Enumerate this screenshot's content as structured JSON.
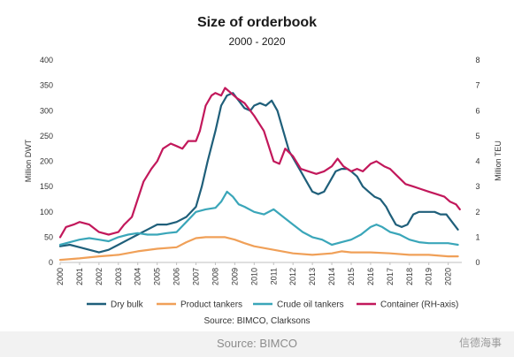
{
  "chart_data": {
    "type": "line",
    "title": "Size of orderbook",
    "subtitle": "2000 - 2020",
    "ylabel": "Million DWT",
    "y2label": "Million TEU",
    "source": "Source: BIMCO, Clarksons",
    "xlim": [
      2000,
      2020.7
    ],
    "ylim": [
      0,
      400
    ],
    "y2lim": [
      0,
      8
    ],
    "yticks": [
      "0",
      "50",
      "100",
      "150",
      "200",
      "250",
      "300",
      "350",
      "400"
    ],
    "y2ticks": [
      "0",
      "1",
      "2",
      "3",
      "4",
      "5",
      "6",
      "7",
      "8"
    ],
    "xticks": [
      "2000",
      "2001",
      "2002",
      "2003",
      "2004",
      "2005",
      "2006",
      "2007",
      "2008",
      "2009",
      "2010",
      "2011",
      "2012",
      "2013",
      "2014",
      "2015",
      "2016",
      "2017",
      "2018",
      "2019",
      "2020"
    ],
    "grid": false,
    "legend_position": "bottom",
    "series": [
      {
        "name": "Dry bulk",
        "color": "#1f5f7a",
        "axis": "left",
        "x": [
          2000,
          2000.5,
          2001,
          2001.5,
          2002,
          2002.5,
          2003,
          2003.5,
          2004,
          2004.5,
          2005,
          2005.5,
          2006,
          2006.5,
          2007,
          2007.3,
          2007.6,
          2008,
          2008.3,
          2008.6,
          2008.9,
          2009.2,
          2009.5,
          2009.8,
          2010,
          2010.3,
          2010.6,
          2010.9,
          2011.2,
          2011.5,
          2011.8,
          2012.1,
          2012.4,
          2012.7,
          2013,
          2013.3,
          2013.6,
          2013.9,
          2014.2,
          2014.5,
          2014.8,
          2015,
          2015.3,
          2015.6,
          2015.9,
          2016.2,
          2016.5,
          2016.8,
          2017,
          2017.3,
          2017.6,
          2017.9,
          2018.2,
          2018.5,
          2018.8,
          2019,
          2019.3,
          2019.6,
          2019.9,
          2020.2,
          2020.5
        ],
        "values": [
          32,
          35,
          30,
          25,
          20,
          25,
          35,
          45,
          55,
          65,
          75,
          75,
          80,
          90,
          110,
          150,
          200,
          260,
          310,
          330,
          335,
          320,
          305,
          300,
          310,
          315,
          310,
          320,
          300,
          260,
          220,
          200,
          180,
          160,
          140,
          135,
          140,
          160,
          180,
          185,
          185,
          180,
          170,
          150,
          140,
          130,
          125,
          110,
          95,
          75,
          70,
          75,
          95,
          100,
          100,
          100,
          100,
          95,
          95,
          80,
          65
        ]
      },
      {
        "name": "Product tankers",
        "color": "#f0a058",
        "axis": "left",
        "x": [
          2000,
          2001,
          2002,
          2003,
          2004,
          2005,
          2006,
          2006.5,
          2007,
          2007.5,
          2008,
          2008.5,
          2009,
          2009.5,
          2010,
          2011,
          2012,
          2013,
          2014,
          2014.5,
          2015,
          2016,
          2017,
          2018,
          2019,
          2020,
          2020.5
        ],
        "values": [
          5,
          8,
          12,
          15,
          22,
          27,
          30,
          40,
          48,
          50,
          50,
          50,
          45,
          38,
          32,
          25,
          18,
          15,
          18,
          22,
          20,
          20,
          18,
          15,
          15,
          12,
          12
        ]
      },
      {
        "name": "Crude oil tankers",
        "color": "#3aa6b9",
        "axis": "left",
        "x": [
          2000,
          2000.5,
          2001,
          2001.5,
          2002,
          2002.5,
          2003,
          2003.5,
          2004,
          2004.5,
          2005,
          2005.5,
          2006,
          2006.5,
          2007,
          2007.5,
          2008,
          2008.3,
          2008.6,
          2008.9,
          2009.2,
          2009.5,
          2010,
          2010.5,
          2011,
          2011.5,
          2012,
          2012.5,
          2013,
          2013.5,
          2014,
          2014.5,
          2015,
          2015.5,
          2016,
          2016.3,
          2016.6,
          2017,
          2017.5,
          2018,
          2018.5,
          2019,
          2019.5,
          2020,
          2020.5
        ],
        "values": [
          35,
          40,
          45,
          48,
          45,
          42,
          50,
          55,
          58,
          55,
          55,
          58,
          60,
          80,
          100,
          105,
          108,
          120,
          140,
          130,
          115,
          110,
          100,
          95,
          105,
          90,
          75,
          60,
          50,
          45,
          35,
          40,
          45,
          55,
          70,
          75,
          70,
          60,
          55,
          45,
          40,
          38,
          38,
          38,
          35
        ]
      },
      {
        "name": "Container (RH-axis)",
        "color": "#c2185b",
        "axis": "right",
        "x": [
          2000,
          2000.3,
          2000.7,
          2001,
          2001.5,
          2002,
          2002.5,
          2003,
          2003.3,
          2003.7,
          2004,
          2004.3,
          2004.7,
          2005,
          2005.3,
          2005.7,
          2006,
          2006.3,
          2006.6,
          2007,
          2007.2,
          2007.5,
          2007.8,
          2008,
          2008.3,
          2008.5,
          2008.8,
          2009.1,
          2009.5,
          2010,
          2010.5,
          2011,
          2011.3,
          2011.6,
          2012,
          2012.4,
          2012.8,
          2013.2,
          2013.6,
          2014,
          2014.3,
          2014.6,
          2015,
          2015.3,
          2015.6,
          2016,
          2016.3,
          2016.7,
          2017,
          2017.4,
          2017.8,
          2018.2,
          2018.6,
          2019,
          2019.4,
          2019.8,
          2020.1,
          2020.4,
          2020.6
        ],
        "values": [
          1.0,
          1.4,
          1.5,
          1.6,
          1.5,
          1.2,
          1.1,
          1.2,
          1.5,
          1.8,
          2.5,
          3.2,
          3.7,
          4.0,
          4.5,
          4.7,
          4.6,
          4.5,
          4.8,
          4.8,
          5.2,
          6.2,
          6.6,
          6.7,
          6.6,
          6.9,
          6.7,
          6.5,
          6.3,
          5.8,
          5.2,
          4.0,
          3.9,
          4.5,
          4.2,
          3.7,
          3.6,
          3.5,
          3.6,
          3.8,
          4.1,
          3.8,
          3.6,
          3.7,
          3.6,
          3.9,
          4.0,
          3.8,
          3.7,
          3.4,
          3.1,
          3.0,
          2.9,
          2.8,
          2.7,
          2.6,
          2.4,
          2.3,
          2.1
        ]
      }
    ]
  },
  "caption": "Source: BIMCO",
  "watermark": "信德海事"
}
